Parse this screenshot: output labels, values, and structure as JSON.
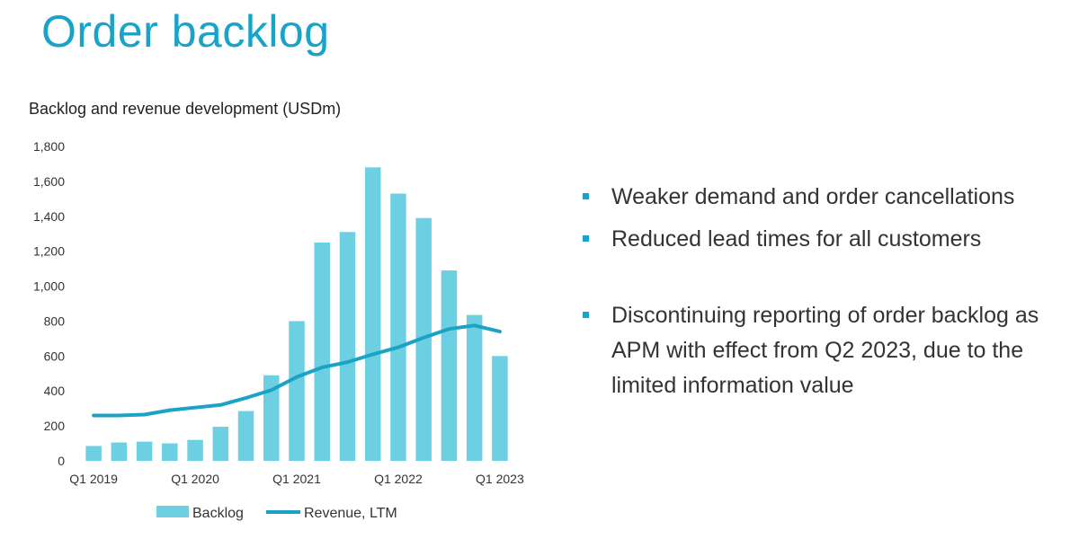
{
  "page": {
    "title": "Order backlog"
  },
  "colors": {
    "accent": "#1aa3c9",
    "backlog_bar": "#6dd0e2",
    "revenue_line": "#1ba3c6"
  },
  "chart_data": {
    "type": "bar",
    "title": "Backlog and revenue development (USDm)",
    "xlabel": "",
    "ylabel": "",
    "ylim": [
      0,
      1800
    ],
    "yticks": [
      0,
      200,
      400,
      600,
      800,
      1000,
      1200,
      1400,
      1600,
      1800
    ],
    "ytick_labels": [
      "0",
      "200",
      "400",
      "600",
      "800",
      "1,000",
      "1,200",
      "1,400",
      "1,600",
      "1,800"
    ],
    "categories": [
      "Q1 2019",
      "Q2 2019",
      "Q3 2019",
      "Q4 2019",
      "Q1 2020",
      "Q2 2020",
      "Q3 2020",
      "Q4 2020",
      "Q1 2021",
      "Q2 2021",
      "Q3 2021",
      "Q4 2021",
      "Q1 2022",
      "Q2 2022",
      "Q3 2022",
      "Q4 2022",
      "Q1 2023"
    ],
    "xtick_labels": [
      {
        "index": 0,
        "label": "Q1 2019"
      },
      {
        "index": 4,
        "label": "Q1 2020"
      },
      {
        "index": 8,
        "label": "Q1 2021"
      },
      {
        "index": 12,
        "label": "Q1 2022"
      },
      {
        "index": 16,
        "label": "Q1 2023"
      }
    ],
    "series": [
      {
        "name": "Backlog",
        "type": "bar",
        "values": [
          85,
          105,
          110,
          100,
          120,
          195,
          285,
          490,
          800,
          1250,
          1310,
          1680,
          1530,
          1390,
          1090,
          835,
          600
        ]
      },
      {
        "name": "Revenue, LTM",
        "type": "line",
        "values": [
          260,
          260,
          265,
          290,
          305,
          320,
          360,
          405,
          480,
          535,
          565,
          610,
          650,
          705,
          755,
          775,
          740
        ]
      }
    ],
    "legend": {
      "position": "bottom",
      "entries": [
        "Backlog",
        "Revenue, LTM"
      ]
    }
  },
  "bullets": [
    {
      "text": "Weaker demand and order cancellations"
    },
    {
      "text": "Reduced lead times for all customers"
    },
    {
      "text": "Discontinuing reporting of order backlog as APM with effect from Q2 2023, due to the limited information value"
    }
  ]
}
